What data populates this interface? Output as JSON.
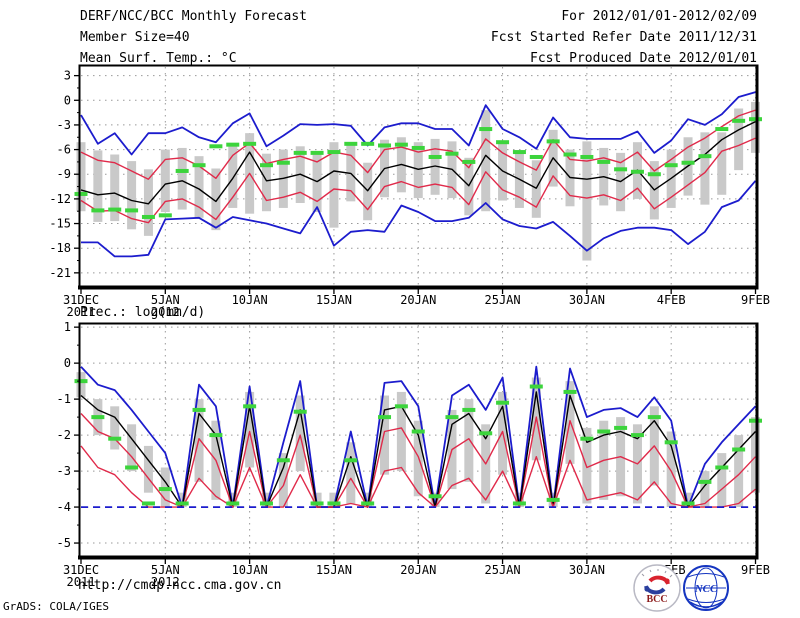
{
  "header": {
    "title": "DERF/NCC/BCC Monthly Forecast",
    "member_size": "Member Size=40",
    "temp_label": "Mean Surf. Temp.: °C",
    "valid_range": "For 2012/01/01-2012/02/09",
    "refer_date": "Fcst Started Refer Date 2011/12/31",
    "produced_date": "Fcst Produced Date 2012/01/01"
  },
  "precip_label": "Prec.: log(mm/d)",
  "footer": {
    "url": "http://cmdp.ncc.cma.gov.cn",
    "credit": "GrADS: COLA/IGES",
    "bcc_label": "BCC",
    "ncc_label": "NCC"
  },
  "colors": {
    "blue": "#1c1ccd",
    "red": "#e02a4a",
    "black": "#000000",
    "green": "#3cd43c",
    "bar": "#c9c9c9",
    "grid": "#999999",
    "frame": "#000000"
  },
  "chart_data": [
    {
      "type": "line",
      "name": "mean-surface-temperature",
      "title": "Mean Surf. Temp.: °C",
      "xlabel": "",
      "ylabel": "°C",
      "grid": true,
      "legend_position": "none",
      "n_points": 41,
      "x_tick_days": [
        0,
        5,
        10,
        15,
        20,
        25,
        30,
        35,
        40
      ],
      "x_tick_labels": [
        "31DEC",
        "5JAN",
        "10JAN",
        "15JAN",
        "20JAN",
        "25JAN",
        "30JAN",
        "4FEB",
        "9FEB"
      ],
      "x_tick_sublabels": [
        "2011",
        "2012",
        "",
        "",
        "",
        "",
        "",
        "",
        ""
      ],
      "yticks": [
        3,
        0,
        -3,
        -6,
        -9,
        -12,
        -15,
        -18,
        -21
      ],
      "ylim": [
        -22.6,
        4.05
      ],
      "series": [
        {
          "name": "ensemble-max",
          "color": "#1c1ccd",
          "width": 1.8,
          "values": [
            -1.8,
            -5.3,
            -4.0,
            -6.6,
            -4.0,
            -4.0,
            -3.3,
            -4.5,
            -5.1,
            -2.8,
            -1.6,
            -5.6,
            -4.3,
            -2.9,
            -3.0,
            -2.9,
            -3.1,
            -5.5,
            -3.3,
            -2.8,
            -2.8,
            -3.5,
            -3.5,
            -5.5,
            -0.6,
            -3.5,
            -4.5,
            -5.9,
            -2.1,
            -4.5,
            -4.7,
            -4.7,
            -4.7,
            -3.8,
            -6.4,
            -4.9,
            -2.3,
            -3.0,
            -1.7,
            0.4,
            1.0
          ]
        },
        {
          "name": "mean-plus-sigma",
          "color": "#e02a4a",
          "width": 1.4,
          "values": [
            -6.3,
            -7.3,
            -7.6,
            -8.6,
            -9.6,
            -7.2,
            -7.0,
            -8.0,
            -9.5,
            -6.7,
            -5.2,
            -7.7,
            -7.2,
            -6.8,
            -7.5,
            -6.3,
            -6.7,
            -8.8,
            -6.0,
            -5.7,
            -6.3,
            -5.9,
            -6.2,
            -8.2,
            -4.7,
            -6.4,
            -7.5,
            -8.5,
            -4.8,
            -7.2,
            -7.4,
            -7.0,
            -7.6,
            -6.3,
            -8.6,
            -7.2,
            -5.7,
            -4.6,
            -3.2,
            -1.9,
            -1.2
          ]
        },
        {
          "name": "ensemble-mean",
          "color": "#000000",
          "width": 1.4,
          "values": [
            -10.9,
            -11.5,
            -11.3,
            -12.2,
            -12.6,
            -10.2,
            -9.8,
            -10.8,
            -12.3,
            -9.5,
            -6.3,
            -9.8,
            -9.5,
            -9.0,
            -9.9,
            -8.6,
            -8.9,
            -11.0,
            -8.3,
            -7.8,
            -8.4,
            -8.0,
            -8.4,
            -10.4,
            -6.7,
            -8.6,
            -9.6,
            -10.7,
            -7.0,
            -9.4,
            -9.6,
            -9.3,
            -9.9,
            -8.5,
            -10.9,
            -9.5,
            -8.0,
            -6.6,
            -4.8,
            -3.6,
            -2.6
          ]
        },
        {
          "name": "mean-minus-sigma",
          "color": "#e02a4a",
          "width": 1.4,
          "values": [
            -12.2,
            -13.5,
            -13.4,
            -14.4,
            -14.9,
            -12.3,
            -12.0,
            -13.0,
            -14.5,
            -11.8,
            -8.9,
            -12.2,
            -11.8,
            -11.2,
            -12.3,
            -10.8,
            -11.0,
            -13.3,
            -10.5,
            -9.9,
            -10.6,
            -10.2,
            -10.6,
            -12.7,
            -8.7,
            -10.9,
            -11.8,
            -13.0,
            -9.2,
            -11.6,
            -11.9,
            -11.5,
            -12.2,
            -10.7,
            -13.2,
            -11.8,
            -10.3,
            -8.8,
            -6.2,
            -5.5,
            -4.6
          ]
        },
        {
          "name": "ensemble-min",
          "color": "#1c1ccd",
          "width": 1.8,
          "values": [
            -17.3,
            -17.3,
            -19.0,
            -19.0,
            -18.8,
            -14.5,
            -14.4,
            -14.3,
            -15.5,
            -14.2,
            -14.6,
            -15.0,
            -15.6,
            -16.2,
            -13.0,
            -17.7,
            -16.0,
            -15.8,
            -16.0,
            -12.8,
            -13.6,
            -14.7,
            -14.7,
            -14.3,
            -12.5,
            -14.5,
            -15.3,
            -15.6,
            -14.8,
            -16.5,
            -18.3,
            -16.8,
            -15.9,
            -15.5,
            -15.5,
            -15.8,
            -17.5,
            -16.0,
            -13.0,
            -12.2,
            -9.8
          ]
        }
      ],
      "bars": {
        "name": "ensemble-spread",
        "high": [
          -5.1,
          -6.1,
          -6.6,
          -7.4,
          -8.4,
          -6.0,
          -5.8,
          -6.8,
          -8.3,
          -5.5,
          -4.0,
          -6.5,
          -6.0,
          -5.6,
          -6.3,
          -5.1,
          -5.5,
          -7.6,
          -4.8,
          -4.5,
          -5.1,
          -4.7,
          -5.0,
          -7.0,
          -1.2,
          -5.2,
          -6.3,
          -7.3,
          -3.6,
          -6.0,
          -5.0,
          -5.8,
          -6.4,
          -5.1,
          -7.4,
          -6.0,
          -4.5,
          -3.9,
          -3.9,
          -1.0,
          -0.2
        ],
        "low": [
          -13.5,
          -14.8,
          -14.7,
          -15.7,
          -16.5,
          -13.6,
          -13.3,
          -14.3,
          -15.8,
          -13.1,
          -13.8,
          -13.5,
          -13.1,
          -12.5,
          -13.6,
          -15.5,
          -12.3,
          -14.6,
          -11.8,
          -11.2,
          -11.9,
          -11.5,
          -11.9,
          -14.0,
          -13.5,
          -12.2,
          -13.1,
          -14.3,
          -10.5,
          -12.9,
          -19.5,
          -12.8,
          -13.5,
          -12.0,
          -14.5,
          -13.1,
          -11.6,
          -12.7,
          -11.5,
          -8.5,
          -6.4
        ]
      },
      "markers": {
        "name": "verification",
        "color": "#3cd43c",
        "values": [
          -11.4,
          -13.4,
          -13.3,
          -13.4,
          -14.2,
          -14.0,
          -8.6,
          -7.9,
          -5.6,
          -5.4,
          -5.3,
          -7.9,
          -7.6,
          -6.4,
          -6.4,
          -6.3,
          -5.3,
          -5.3,
          -5.5,
          -5.4,
          -5.8,
          -6.9,
          -6.5,
          -7.5,
          -3.5,
          -5.1,
          -6.3,
          -6.9,
          -5.0,
          -6.6,
          -6.9,
          -7.5,
          -8.4,
          -8.7,
          -9.0,
          -7.9,
          -7.6,
          -6.8,
          -3.5,
          -2.5,
          -2.3
        ]
      }
    },
    {
      "type": "line",
      "name": "precipitation",
      "title": "Prec.: log(mm/d)",
      "xlabel": "",
      "ylabel": "log(mm/d)",
      "grid": true,
      "legend_position": "none",
      "n_points": 41,
      "x_tick_days": [
        0,
        5,
        10,
        15,
        20,
        25,
        30,
        35,
        40
      ],
      "x_tick_labels": [
        "31DEC",
        "5JAN",
        "10JAN",
        "15JAN",
        "20JAN",
        "25JAN",
        "30JAN",
        "4FEB",
        "9FEB"
      ],
      "x_tick_sublabels": [
        "2011",
        "2012",
        "",
        "",
        "",
        "",
        "",
        "",
        ""
      ],
      "yticks": [
        1,
        0,
        -1,
        -2,
        -3,
        -4,
        -5
      ],
      "ylim": [
        -5.36,
        1.06
      ],
      "series": [
        {
          "name": "ensemble-max",
          "color": "#1c1ccd",
          "width": 1.8,
          "values": [
            -0.1,
            -0.6,
            -0.75,
            -1.3,
            -1.9,
            -2.5,
            -4.0,
            -0.6,
            -1.2,
            -4.0,
            -0.65,
            -4.0,
            -2.2,
            -0.5,
            -4.0,
            -4.0,
            -1.9,
            -4.0,
            -0.55,
            -0.5,
            -1.2,
            -4.0,
            -0.9,
            -0.6,
            -1.3,
            -0.4,
            -4.0,
            -0.1,
            -4.0,
            -0.15,
            -1.5,
            -1.3,
            -1.25,
            -1.5,
            -0.95,
            -1.6,
            -4.0,
            -2.8,
            -2.2,
            -1.7,
            -1.2
          ]
        },
        {
          "name": "mean-plus-sigma",
          "color": "#e02a4a",
          "width": 1.4,
          "values": [
            -1.4,
            -1.9,
            -2.1,
            -2.6,
            -3.2,
            -3.8,
            -4.0,
            -2.1,
            -2.7,
            -4.0,
            -1.9,
            -4.0,
            -3.4,
            -2.0,
            -4.0,
            -4.0,
            -3.2,
            -4.0,
            -1.9,
            -1.8,
            -2.6,
            -4.0,
            -2.4,
            -2.1,
            -2.8,
            -1.9,
            -4.0,
            -1.5,
            -4.0,
            -1.6,
            -2.9,
            -2.7,
            -2.6,
            -2.8,
            -2.3,
            -3.0,
            -4.0,
            -3.9,
            -3.5,
            -3.1,
            -2.6
          ]
        },
        {
          "name": "ensemble-mean",
          "color": "#000000",
          "width": 1.4,
          "values": [
            -0.9,
            -1.3,
            -1.5,
            -2.1,
            -2.7,
            -3.3,
            -4.0,
            -1.4,
            -2.0,
            -4.0,
            -1.2,
            -4.0,
            -2.9,
            -1.3,
            -4.0,
            -4.0,
            -2.6,
            -4.0,
            -1.3,
            -1.2,
            -2.0,
            -4.0,
            -1.7,
            -1.4,
            -2.1,
            -1.2,
            -4.0,
            -0.8,
            -4.0,
            -0.9,
            -2.2,
            -2.0,
            -1.9,
            -2.1,
            -1.6,
            -2.3,
            -4.0,
            -3.4,
            -2.9,
            -2.4,
            -1.9
          ]
        },
        {
          "name": "mean-minus-sigma",
          "color": "#e02a4a",
          "width": 1.4,
          "values": [
            -2.3,
            -2.9,
            -3.1,
            -3.6,
            -4.0,
            -4.0,
            -4.0,
            -3.2,
            -3.7,
            -4.0,
            -2.9,
            -4.0,
            -4.0,
            -3.1,
            -4.0,
            -4.0,
            -3.9,
            -4.0,
            -3.0,
            -2.9,
            -3.6,
            -4.0,
            -3.4,
            -3.2,
            -3.8,
            -3.0,
            -4.0,
            -2.6,
            -4.0,
            -2.7,
            -3.8,
            -3.7,
            -3.6,
            -3.8,
            -3.3,
            -3.9,
            -4.0,
            -4.0,
            -4.0,
            -3.9,
            -3.5
          ]
        },
        {
          "name": "ensemble-min",
          "color": "#1c1ccd",
          "width": 1.8,
          "dash": "7 5",
          "values": [
            -4.0,
            -4.0,
            -4.0,
            -4.0,
            -4.0,
            -4.0,
            -4.0,
            -4.0,
            -4.0,
            -4.0,
            -4.0,
            -4.0,
            -4.0,
            -4.0,
            -4.0,
            -4.0,
            -4.0,
            -4.0,
            -4.0,
            -4.0,
            -4.0,
            -4.0,
            -4.0,
            -4.0,
            -4.0,
            -4.0,
            -4.0,
            -4.0,
            -4.0,
            -4.0,
            -4.0,
            -4.0,
            -4.0,
            -4.0,
            -4.0,
            -4.0,
            -4.0,
            -4.0,
            -4.0,
            -4.0,
            -4.0
          ]
        }
      ],
      "bars": {
        "name": "ensemble-spread",
        "high": [
          -0.25,
          -1.0,
          -1.2,
          -1.7,
          -2.3,
          -2.9,
          -3.6,
          -1.0,
          -1.6,
          -3.6,
          -0.8,
          -3.6,
          -2.5,
          -0.9,
          -3.6,
          -3.6,
          -2.2,
          -3.6,
          -0.9,
          -0.8,
          -1.6,
          -3.6,
          -1.3,
          -1.0,
          -1.7,
          -0.8,
          -3.6,
          -0.4,
          -3.6,
          -0.5,
          -1.8,
          -1.6,
          -1.5,
          -1.7,
          -1.2,
          -1.9,
          -3.6,
          -3.0,
          -2.5,
          -2.0,
          -1.5
        ],
        "low": [
          -0.95,
          -2.0,
          -2.4,
          -3.0,
          -3.6,
          -4.0,
          -4.0,
          -3.3,
          -3.8,
          -4.0,
          -2.9,
          -4.0,
          -4.0,
          -3.0,
          -4.0,
          -4.0,
          -3.9,
          -4.0,
          -3.1,
          -3.0,
          -3.7,
          -4.0,
          -3.5,
          -3.3,
          -3.9,
          -3.1,
          -4.0,
          -2.7,
          -4.0,
          -2.8,
          -3.9,
          -3.8,
          -3.7,
          -3.9,
          -3.4,
          -4.0,
          -4.0,
          -4.0,
          -4.0,
          -4.0,
          -3.6
        ]
      },
      "markers": {
        "name": "verification",
        "color": "#3cd43c",
        "values": [
          -0.5,
          -1.5,
          -2.1,
          -2.9,
          -3.9,
          -3.5,
          -3.9,
          -1.3,
          -2.0,
          -3.9,
          -1.2,
          -3.9,
          -2.7,
          -1.35,
          -3.9,
          -3.9,
          -2.7,
          -3.9,
          -1.5,
          -1.2,
          -1.9,
          -3.7,
          -1.5,
          -1.3,
          -1.95,
          -1.1,
          -3.9,
          -0.65,
          -3.8,
          -0.8,
          -2.1,
          -1.9,
          -1.8,
          -2.0,
          -1.5,
          -2.2,
          -3.9,
          -3.3,
          -2.9,
          -2.4,
          -1.6
        ]
      }
    }
  ]
}
